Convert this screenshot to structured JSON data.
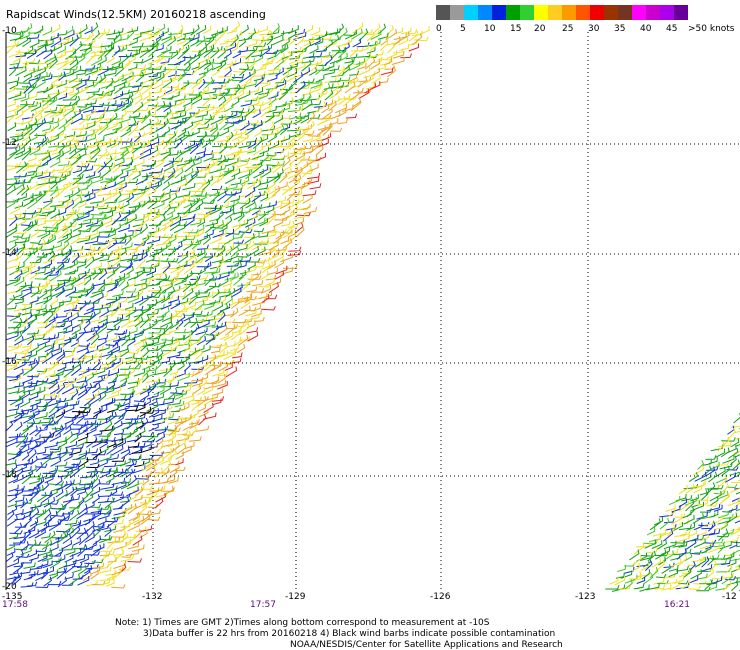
{
  "title": "Rapidscat Winds(12.5KM) 20160218 ascending",
  "legend": {
    "colors": [
      "#555555",
      "#9a9a9a",
      "#00d0ff",
      "#0088ff",
      "#0022dd",
      "#00a000",
      "#30d030",
      "#ffff00",
      "#ffcc22",
      "#ff9900",
      "#ff5500",
      "#ee0000",
      "#993300",
      "#773322",
      "#ff00ff",
      "#cc00cc",
      "#aa00ee",
      "#660099"
    ],
    "labels": [
      "0",
      "5",
      "10",
      "15",
      "20",
      "25",
      "30",
      "35",
      "40",
      "45",
      ">50 knots"
    ]
  },
  "axes": {
    "lat_labels": [
      "-10",
      "-12",
      "-14",
      "-16",
      "-18",
      "-20"
    ],
    "lon_labels": [
      "-135",
      "-132",
      "-129",
      "-126",
      "-123",
      "-12"
    ]
  },
  "time_labels": [
    "17:58",
    "17:57",
    "16:21"
  ],
  "notes": [
    "Note: 1) Times are GMT 2)Times along bottom correspond to measurement at -10S",
    "3)Data buffer is 22 hrs from 20160218 4) Black wind barbs indicate possible contamination",
    "NOAA/NESDIS/Center for Satellite Applications and Research"
  ]
}
